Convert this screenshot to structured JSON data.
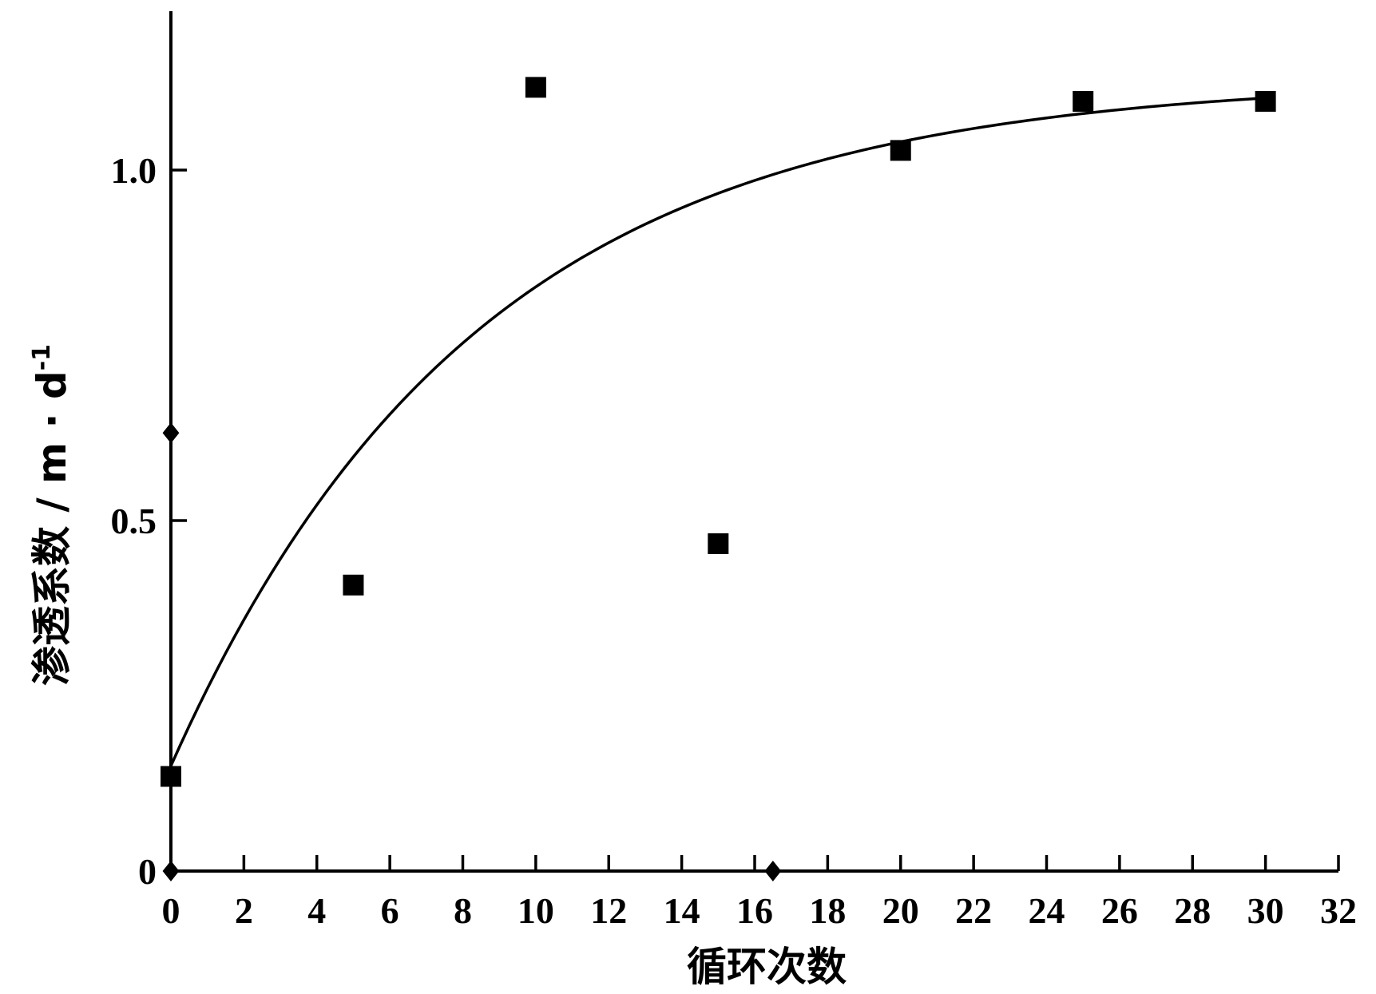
{
  "chart_data": {
    "type": "scatter",
    "xlabel": "循环次数",
    "ylabel": "渗透系数 / m · d",
    "ylabel_sup": "-1",
    "xlim": [
      0,
      32
    ],
    "ylim": [
      0,
      1.25
    ],
    "x_ticks": [
      0,
      2,
      4,
      6,
      8,
      10,
      12,
      14,
      16,
      18,
      20,
      22,
      24,
      26,
      28,
      30,
      32
    ],
    "x_tick_labels": [
      "0",
      "2",
      "4",
      "6",
      "8",
      "10",
      "12",
      "14",
      "16",
      "18",
      "20",
      "22",
      "24",
      "26",
      "28",
      "30",
      "32"
    ],
    "y_ticks": [
      0,
      0.5,
      1.0
    ],
    "y_tick_labels": [
      "0",
      "0.5",
      "1.0"
    ],
    "grid": false,
    "series": [
      {
        "marker": "square",
        "x": [
          0,
          5,
          10,
          15,
          20,
          25,
          30
        ],
        "y": [
          0.135,
          0.408,
          1.118,
          0.467,
          1.028,
          1.098,
          1.098
        ]
      }
    ],
    "fit_curve": {
      "model": "exponential",
      "x_range": [
        0,
        30
      ],
      "y0": 0.15,
      "y_inf": 1.13,
      "k": 0.1195
    },
    "axis_markers": [
      {
        "axis": "y",
        "value": 0.625,
        "shape": "diamond"
      },
      {
        "axis": "y",
        "value": 0,
        "shape": "diamond"
      },
      {
        "axis": "x",
        "value": 16.5,
        "shape": "diamond"
      }
    ],
    "colors": {
      "ink": "#000000",
      "background": "#ffffff"
    }
  }
}
